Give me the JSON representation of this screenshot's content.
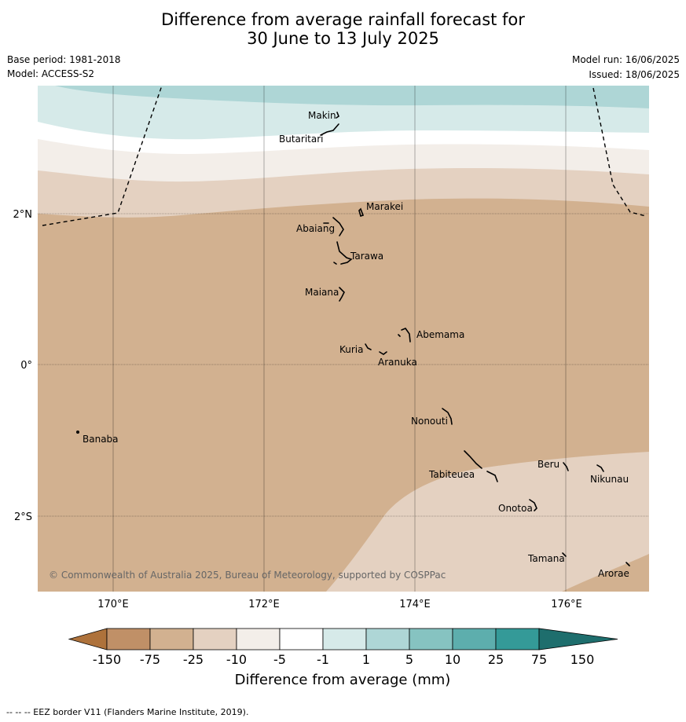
{
  "title": {
    "line1": "Difference from average rainfall forecast for",
    "line2": "30 June to 13 July 2025"
  },
  "meta": {
    "base_period": "Base period: 1981-2018",
    "model": "Model: ACCESS-S2",
    "model_run": "Model run: 16/06/2025",
    "issued": "Issued: 18/06/2025"
  },
  "map": {
    "lat_labels": [
      "2°N",
      "0°",
      "2°S"
    ],
    "lon_labels": [
      "170°E",
      "172°E",
      "174°E",
      "176°E"
    ],
    "islands": [
      "Makin",
      "Butaritari",
      "Marakei",
      "Abaiang",
      "Tarawa",
      "Maiana",
      "Abemama",
      "Kuria",
      "Aranuka",
      "Nonouti",
      "Banaba",
      "Beru",
      "Nikunau",
      "Tabiteuea",
      "Onotoa",
      "Tamana",
      "Arorae"
    ],
    "copyright": "© Commonwealth of Australia 2025, Bureau of Meteorology, supported by COSPPac",
    "colors": {
      "n75": "#c09067",
      "n25": "#d2b190",
      "n10": "#e4d1c1",
      "n5": "#f3eee9",
      "n1": "#ffffff",
      "p1": "#d6eae9",
      "p5": "#aed6d6"
    }
  },
  "legend": {
    "ticks": [
      "-150",
      "-75",
      "-25",
      "-10",
      "-5",
      "-1",
      "1",
      "5",
      "10",
      "25",
      "75",
      "150"
    ],
    "colors": [
      "#ae723b",
      "#c09067",
      "#d2b190",
      "#e4d1c1",
      "#f3eee9",
      "#ffffff",
      "#d6eae9",
      "#aed6d6",
      "#86c3c1",
      "#5daead",
      "#349a98",
      "#1e6e6d"
    ],
    "label": "Difference from average (mm)"
  },
  "footer": "--  --  -- EEZ border V11 (Flanders Marine Institute, 2019)."
}
